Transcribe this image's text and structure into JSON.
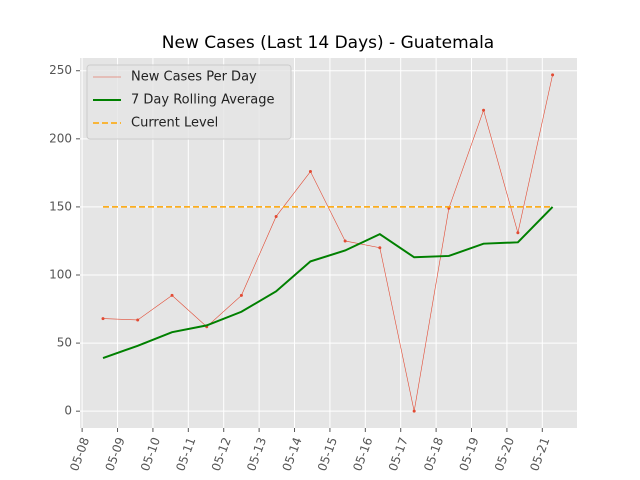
{
  "chart_data": {
    "type": "line",
    "title": "New Cases (Last 14 Days) - Guatemala",
    "x": [
      0.59,
      1.57,
      2.54,
      3.52,
      4.5,
      5.48,
      6.45,
      7.43,
      8.41,
      9.38,
      10.36,
      11.34,
      12.31,
      13.29
    ],
    "series": [
      {
        "name": "New Cases Per Day",
        "color": "#e24a33",
        "style": "solid",
        "markers": true,
        "values": [
          68,
          67,
          85,
          62,
          85,
          143,
          176,
          125,
          120,
          0,
          149,
          221,
          131,
          247
        ]
      },
      {
        "name": "7 Day Rolling Average",
        "color": "#008000",
        "style": "solid",
        "markers": false,
        "values": [
          39,
          48,
          58,
          63,
          73,
          88,
          110,
          118,
          130,
          113,
          114,
          123,
          124,
          150
        ]
      },
      {
        "name": "Current Level",
        "color": "#ffa500",
        "style": "dashed",
        "markers": false,
        "x": [
          0.59,
          13.29
        ],
        "values": [
          150,
          150
        ]
      }
    ],
    "xlim": [
      -0.06,
      13.98
    ],
    "xticks": [
      {
        "value": 0,
        "label": "05-08"
      },
      {
        "value": 1,
        "label": "05-09"
      },
      {
        "value": 2,
        "label": "05-10"
      },
      {
        "value": 3,
        "label": "05-11"
      },
      {
        "value": 4,
        "label": "05-12"
      },
      {
        "value": 5,
        "label": "05-13"
      },
      {
        "value": 6,
        "label": "05-14"
      },
      {
        "value": 7,
        "label": "05-15"
      },
      {
        "value": 8,
        "label": "05-16"
      },
      {
        "value": 9,
        "label": "05-17"
      },
      {
        "value": 10,
        "label": "05-18"
      },
      {
        "value": 11,
        "label": "05-19"
      },
      {
        "value": 12,
        "label": "05-20"
      },
      {
        "value": 13,
        "label": "05-21"
      }
    ],
    "ylim": [
      -12.35,
      259.35
    ],
    "yticks": [
      0,
      50,
      100,
      150,
      200,
      250
    ],
    "grid": true,
    "legend": "upper-left"
  }
}
